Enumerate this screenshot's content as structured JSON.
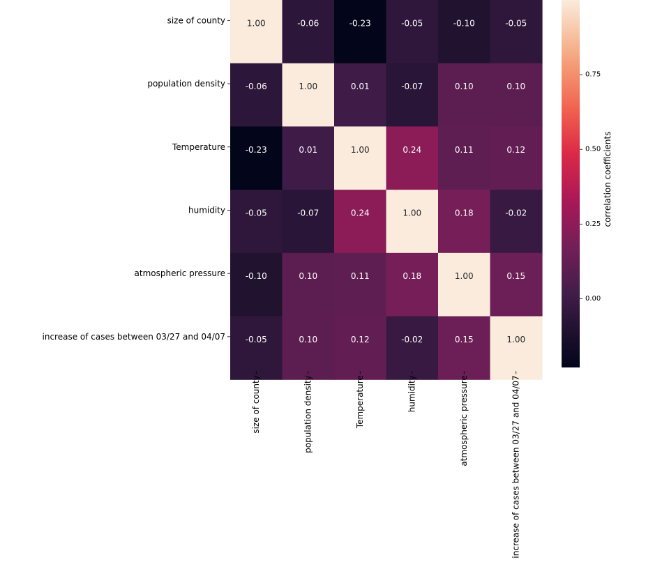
{
  "chart_data": {
    "type": "heatmap",
    "title": "",
    "labels": [
      "size of county",
      "population density",
      "Temperature",
      "humidity",
      "atmospheric pressure",
      "increase of cases between 03/27 and 04/07"
    ],
    "matrix": [
      [
        1.0,
        -0.06,
        -0.23,
        -0.05,
        -0.1,
        -0.05
      ],
      [
        -0.06,
        1.0,
        0.01,
        -0.07,
        0.1,
        0.1
      ],
      [
        -0.23,
        0.01,
        1.0,
        0.24,
        0.11,
        0.12
      ],
      [
        -0.05,
        -0.07,
        0.24,
        1.0,
        0.18,
        -0.02
      ],
      [
        -0.1,
        0.1,
        0.11,
        0.18,
        1.0,
        0.15
      ],
      [
        -0.05,
        0.1,
        0.12,
        -0.02,
        0.15,
        1.0
      ]
    ],
    "value_format": "2 decimals",
    "colormap": "rocket",
    "colorbar": {
      "label": "correlation coefficients",
      "range": [
        -0.23,
        1.0
      ],
      "ticks": [
        0.0,
        0.25,
        0.5,
        0.75
      ],
      "tick_labels": [
        "0.00",
        "0.25",
        "0.50",
        "0.75"
      ],
      "position": "right"
    }
  }
}
